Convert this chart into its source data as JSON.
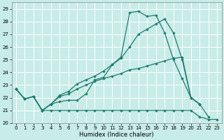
{
  "x": [
    0,
    1,
    2,
    3,
    4,
    5,
    6,
    7,
    8,
    9,
    10,
    11,
    12,
    13,
    14,
    15,
    16,
    17,
    18,
    19,
    20,
    21,
    22,
    23
  ],
  "line1": [
    22.7,
    21.9,
    22.1,
    21.0,
    21.5,
    21.7,
    21.8,
    21.8,
    22.3,
    23.4,
    23.6,
    24.6,
    25.2,
    28.7,
    28.8,
    28.4,
    28.5,
    27.1,
    25.0,
    23.5,
    22.0,
    21.5,
    20.5,
    null
  ],
  "line2": [
    22.7,
    21.9,
    22.1,
    21.0,
    21.0,
    21.0,
    21.0,
    21.0,
    21.0,
    21.0,
    21.0,
    21.0,
    21.0,
    21.0,
    21.0,
    21.0,
    21.0,
    21.0,
    21.0,
    21.0,
    21.0,
    20.5,
    20.3,
    20.3
  ],
  "line3": [
    22.7,
    21.9,
    22.1,
    21.0,
    21.5,
    22.1,
    22.3,
    22.7,
    23.0,
    23.3,
    23.5,
    23.7,
    23.9,
    24.2,
    24.3,
    24.5,
    24.7,
    24.9,
    25.1,
    25.2,
    22.0,
    21.5,
    null,
    null
  ],
  "line4": [
    22.7,
    21.9,
    22.1,
    21.0,
    21.5,
    22.2,
    22.5,
    23.1,
    23.4,
    23.7,
    24.1,
    24.6,
    25.1,
    26.0,
    27.0,
    27.4,
    27.8,
    28.2,
    27.1,
    25.0,
    22.0,
    21.5,
    null,
    null
  ],
  "xlabel": "Humidex (Indice chaleur)",
  "color": "#1e7b6e",
  "bg_color": "#c8ece8",
  "grid_color": "#b0ddd8",
  "xlim": [
    -0.5,
    23.5
  ],
  "ylim": [
    20,
    29.5
  ],
  "yticks": [
    20,
    21,
    22,
    23,
    24,
    25,
    26,
    27,
    28,
    29
  ],
  "xticks": [
    0,
    1,
    2,
    3,
    4,
    5,
    6,
    7,
    8,
    9,
    10,
    11,
    12,
    13,
    14,
    15,
    16,
    17,
    18,
    19,
    20,
    21,
    22,
    23
  ]
}
